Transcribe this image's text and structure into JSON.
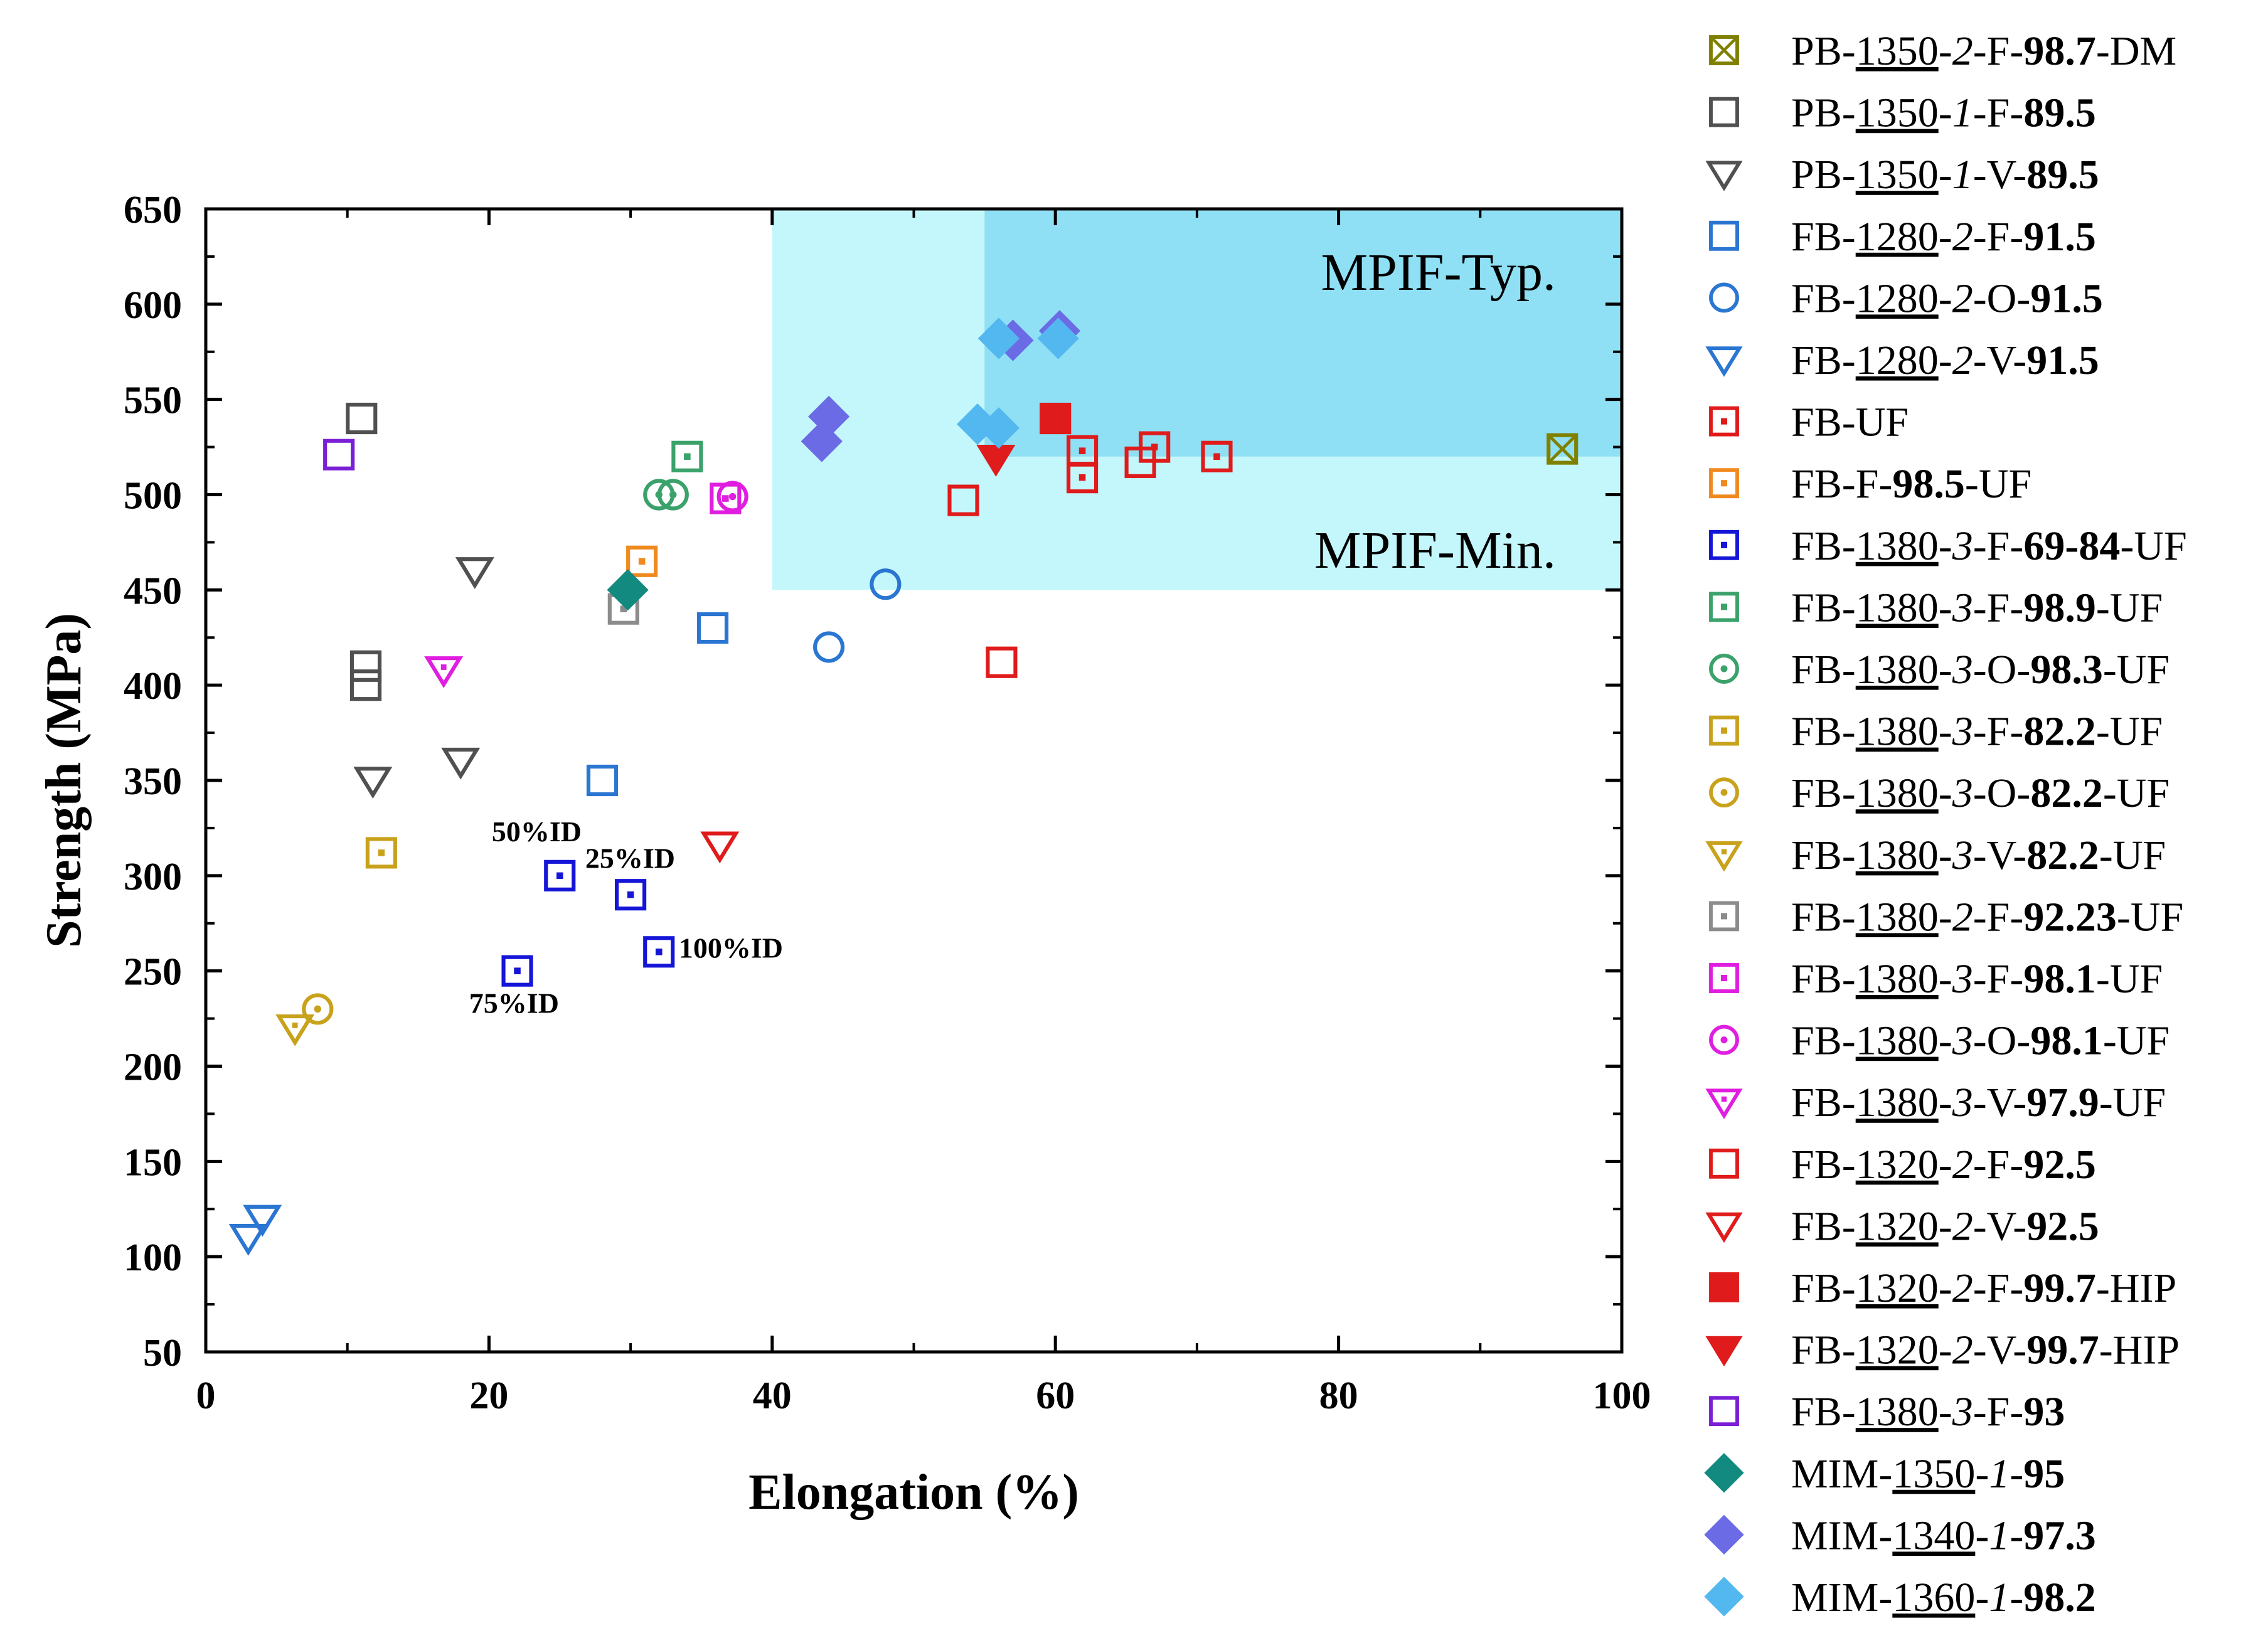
{
  "chart_data": {
    "type": "scatter",
    "xlabel": "Elongation (%)",
    "ylabel": "Strength (MPa)",
    "xlim": [
      0,
      100
    ],
    "ylim": [
      50,
      650
    ],
    "xticks": [
      0,
      20,
      40,
      60,
      80,
      100
    ],
    "yticks": [
      50,
      100,
      150,
      200,
      250,
      300,
      350,
      400,
      450,
      500,
      550,
      600,
      650
    ],
    "regions": [
      {
        "name": "MPIF-Min.",
        "x": [
          40,
          100
        ],
        "y": [
          450,
          650
        ],
        "color": "#c4f7fb"
      },
      {
        "name": "MPIF-Typ.",
        "x": [
          55,
          100
        ],
        "y": [
          520,
          650
        ],
        "color": "#8fe0f5"
      }
    ],
    "annotations": [
      {
        "text": "50%ID",
        "x": 20.2,
        "y": 318
      },
      {
        "text": "25%ID",
        "x": 26.8,
        "y": 304
      },
      {
        "text": "100%ID",
        "x": 33.4,
        "y": 257
      },
      {
        "text": "75%ID",
        "x": 18.6,
        "y": 228
      }
    ],
    "series": [
      {
        "name": "PB-1350-2-F-98.7-DM",
        "label": [
          [
            "PB-",
            ""
          ],
          [
            "1350",
            "u"
          ],
          [
            "-",
            ""
          ],
          [
            "2",
            "i"
          ],
          [
            "-F-",
            ""
          ],
          [
            "98.7",
            "b"
          ],
          [
            "-DM",
            ""
          ]
        ],
        "marker": "square-x",
        "color": "#808000",
        "filled": false,
        "points": [
          [
            95.8,
            524
          ]
        ]
      },
      {
        "name": "PB-1350-1-F-89.5",
        "label": [
          [
            "PB-",
            ""
          ],
          [
            "1350",
            "u"
          ],
          [
            "-",
            ""
          ],
          [
            "1",
            "i"
          ],
          [
            "-F-",
            ""
          ],
          [
            "89.5",
            "b"
          ]
        ],
        "marker": "square",
        "color": "#505050",
        "filled": false,
        "points": [
          [
            11,
            540
          ],
          [
            11.3,
            410
          ],
          [
            11.3,
            400
          ]
        ]
      },
      {
        "name": "PB-1350-1-V-89.5",
        "label": [
          [
            "PB-",
            ""
          ],
          [
            "1350",
            "u"
          ],
          [
            "-",
            ""
          ],
          [
            "1",
            "i"
          ],
          [
            "-V-",
            ""
          ],
          [
            "89.5",
            "b"
          ]
        ],
        "marker": "tri-down",
        "color": "#505050",
        "filled": false,
        "points": [
          [
            19,
            460
          ],
          [
            11.8,
            350
          ],
          [
            18,
            360
          ]
        ]
      },
      {
        "name": "FB-1280-2-F-91.5",
        "label": [
          [
            "FB-",
            ""
          ],
          [
            "1280",
            "u"
          ],
          [
            "-",
            ""
          ],
          [
            "2",
            "i"
          ],
          [
            "-F-",
            ""
          ],
          [
            "91.5",
            "b"
          ]
        ],
        "marker": "square",
        "color": "#2a76d2",
        "filled": false,
        "points": [
          [
            35.8,
            430
          ],
          [
            28,
            350
          ]
        ]
      },
      {
        "name": "FB-1280-2-O-91.5",
        "label": [
          [
            "FB-",
            ""
          ],
          [
            "1280",
            "u"
          ],
          [
            "-",
            ""
          ],
          [
            "2",
            "i"
          ],
          [
            "-O-",
            ""
          ],
          [
            "91.5",
            "b"
          ]
        ],
        "marker": "circle",
        "color": "#2a76d2",
        "filled": false,
        "points": [
          [
            48,
            453
          ],
          [
            44,
            420
          ]
        ]
      },
      {
        "name": "FB-1280-2-V-91.5",
        "label": [
          [
            "FB-",
            ""
          ],
          [
            "1280",
            "u"
          ],
          [
            "-",
            ""
          ],
          [
            "2",
            "i"
          ],
          [
            "-V-",
            ""
          ],
          [
            "91.5",
            "b"
          ]
        ],
        "marker": "tri-down",
        "color": "#2a76d2",
        "filled": false,
        "points": [
          [
            4,
            120
          ],
          [
            3,
            110
          ]
        ]
      },
      {
        "name": "FB-UF",
        "label": [
          [
            "FB-UF",
            ""
          ]
        ],
        "marker": "square-dot",
        "color": "#e01b1b",
        "filled": false,
        "points": [
          [
            61.9,
            523
          ],
          [
            61.9,
            509
          ],
          [
            67,
            525
          ],
          [
            71.4,
            520
          ]
        ]
      },
      {
        "name": "FB-F-98.5-UF",
        "label": [
          [
            "FB-F-",
            ""
          ],
          [
            "98.5",
            "b"
          ],
          [
            "-UF",
            ""
          ]
        ],
        "marker": "square-dot",
        "color": "#f08a1e",
        "filled": false,
        "points": [
          [
            30.8,
            465
          ]
        ]
      },
      {
        "name": "FB-1380-3-F-69-84-UF",
        "label": [
          [
            "FB-",
            ""
          ],
          [
            "1380",
            "u"
          ],
          [
            "-",
            ""
          ],
          [
            "3",
            "i"
          ],
          [
            "-F-",
            ""
          ],
          [
            "69-84",
            "b"
          ],
          [
            "-UF",
            ""
          ]
        ],
        "marker": "square-dot",
        "color": "#1515d8",
        "filled": false,
        "points": [
          [
            25,
            300
          ],
          [
            30,
            290
          ],
          [
            32,
            260
          ],
          [
            22,
            250
          ]
        ]
      },
      {
        "name": "FB-1380-3-F-98.9-UF",
        "label": [
          [
            "FB-",
            ""
          ],
          [
            "1380",
            "u"
          ],
          [
            "-",
            ""
          ],
          [
            "3",
            "i"
          ],
          [
            "-F-",
            ""
          ],
          [
            "98.9",
            "b"
          ],
          [
            "-UF",
            ""
          ]
        ],
        "marker": "square-dot",
        "color": "#3aa26a",
        "filled": false,
        "points": [
          [
            34,
            520
          ]
        ]
      },
      {
        "name": "FB-1380-3-O-98.3-UF",
        "label": [
          [
            "FB-",
            ""
          ],
          [
            "1380",
            "u"
          ],
          [
            "-",
            ""
          ],
          [
            "3",
            "i"
          ],
          [
            "-O-",
            ""
          ],
          [
            "98.3",
            "b"
          ],
          [
            "-UF",
            ""
          ]
        ],
        "marker": "circle-dot",
        "color": "#3aa26a",
        "filled": false,
        "points": [
          [
            32,
            500
          ],
          [
            33,
            500
          ]
        ]
      },
      {
        "name": "FB-1380-3-F-82.2-UF",
        "label": [
          [
            "FB-",
            ""
          ],
          [
            "1380",
            "u"
          ],
          [
            "-",
            ""
          ],
          [
            "3",
            "i"
          ],
          [
            "-F-",
            ""
          ],
          [
            "82.2",
            "b"
          ],
          [
            "-UF",
            ""
          ]
        ],
        "marker": "square-dot",
        "color": "#c9a21c",
        "filled": false,
        "points": [
          [
            12.4,
            312
          ]
        ]
      },
      {
        "name": "FB-1380-3-O-82.2-UF",
        "label": [
          [
            "FB-",
            ""
          ],
          [
            "1380",
            "u"
          ],
          [
            "-",
            ""
          ],
          [
            "3",
            "i"
          ],
          [
            "-O-",
            ""
          ],
          [
            "82.2",
            "b"
          ],
          [
            "-UF",
            ""
          ]
        ],
        "marker": "circle-dot",
        "color": "#c9a21c",
        "filled": false,
        "points": [
          [
            7.9,
            230
          ]
        ]
      },
      {
        "name": "FB-1380-3-V-82.2-UF",
        "label": [
          [
            "FB-",
            ""
          ],
          [
            "1380",
            "u"
          ],
          [
            "-",
            ""
          ],
          [
            "3",
            "i"
          ],
          [
            "-V-",
            ""
          ],
          [
            "82.2",
            "b"
          ],
          [
            "-UF",
            ""
          ]
        ],
        "marker": "tri-down-dot",
        "color": "#c9a21c",
        "filled": false,
        "points": [
          [
            6.3,
            220
          ]
        ]
      },
      {
        "name": "FB-1380-2-F-92.23-UF",
        "label": [
          [
            "FB-",
            ""
          ],
          [
            "1380",
            "u"
          ],
          [
            "-",
            ""
          ],
          [
            "2",
            "i"
          ],
          [
            "-F-",
            ""
          ],
          [
            "92.23",
            "b"
          ],
          [
            "-UF",
            ""
          ]
        ],
        "marker": "square-dot",
        "color": "#8c8c8c",
        "filled": false,
        "points": [
          [
            29.5,
            440
          ]
        ]
      },
      {
        "name": "FB-1380-3-F-98.1-UF",
        "label": [
          [
            "FB-",
            ""
          ],
          [
            "1380",
            "u"
          ],
          [
            "-",
            ""
          ],
          [
            "3",
            "i"
          ],
          [
            "-F-",
            ""
          ],
          [
            "98.1",
            "b"
          ],
          [
            "-UF",
            ""
          ]
        ],
        "marker": "square-dot",
        "color": "#e01ee0",
        "filled": false,
        "points": [
          [
            36.7,
            498
          ]
        ]
      },
      {
        "name": "FB-1380-3-O-98.1-UF",
        "label": [
          [
            "FB-",
            ""
          ],
          [
            "1380",
            "u"
          ],
          [
            "-",
            ""
          ],
          [
            "3",
            "i"
          ],
          [
            "-O-",
            ""
          ],
          [
            "98.1",
            "b"
          ],
          [
            "-UF",
            ""
          ]
        ],
        "marker": "circle-dot",
        "color": "#e01ee0",
        "filled": false,
        "points": [
          [
            37.2,
            499
          ]
        ]
      },
      {
        "name": "FB-1380-3-V-97.9-UF",
        "label": [
          [
            "FB-",
            ""
          ],
          [
            "1380",
            "u"
          ],
          [
            "-",
            ""
          ],
          [
            "3",
            "i"
          ],
          [
            "-V-",
            ""
          ],
          [
            "97.9",
            "b"
          ],
          [
            "-UF",
            ""
          ]
        ],
        "marker": "tri-down-dot",
        "color": "#e01ee0",
        "filled": false,
        "points": [
          [
            16.8,
            408
          ]
        ]
      },
      {
        "name": "FB-1320-2-F-92.5",
        "label": [
          [
            "FB-",
            ""
          ],
          [
            "1320",
            "u"
          ],
          [
            "-",
            ""
          ],
          [
            "2",
            "i"
          ],
          [
            "-F-",
            ""
          ],
          [
            "92.5",
            "b"
          ]
        ],
        "marker": "square",
        "color": "#e01b1b",
        "filled": false,
        "points": [
          [
            53.5,
            497
          ],
          [
            56.2,
            412
          ],
          [
            66,
            517
          ]
        ]
      },
      {
        "name": "FB-1320-2-V-92.5",
        "label": [
          [
            "FB-",
            ""
          ],
          [
            "1320",
            "u"
          ],
          [
            "-",
            ""
          ],
          [
            "2",
            "i"
          ],
          [
            "-V-",
            ""
          ],
          [
            "92.5",
            "b"
          ]
        ],
        "marker": "tri-down",
        "color": "#e01b1b",
        "filled": false,
        "points": [
          [
            36.3,
            316
          ]
        ]
      },
      {
        "name": "FB-1320-2-F-99.7-HIP",
        "label": [
          [
            "FB-",
            ""
          ],
          [
            "1320",
            "u"
          ],
          [
            "-",
            ""
          ],
          [
            "2",
            "i"
          ],
          [
            "-F-",
            ""
          ],
          [
            "99.7",
            "b"
          ],
          [
            "-HIP",
            ""
          ]
        ],
        "marker": "square",
        "color": "#e01b1b",
        "filled": true,
        "points": [
          [
            60,
            540
          ]
        ]
      },
      {
        "name": "FB-1320-2-V-99.7-HIP",
        "label": [
          [
            "FB-",
            ""
          ],
          [
            "1320",
            "u"
          ],
          [
            "-",
            ""
          ],
          [
            "2",
            "i"
          ],
          [
            "-V-",
            ""
          ],
          [
            "99.7",
            "b"
          ],
          [
            "-HIP",
            ""
          ]
        ],
        "marker": "tri-down",
        "color": "#e01b1b",
        "filled": true,
        "points": [
          [
            55.8,
            519
          ]
        ]
      },
      {
        "name": "FB-1380-3-F-93",
        "label": [
          [
            "FB-",
            ""
          ],
          [
            "1380",
            "u"
          ],
          [
            "-",
            ""
          ],
          [
            "3",
            "i"
          ],
          [
            "-F-",
            ""
          ],
          [
            "93",
            "b"
          ]
        ],
        "marker": "square",
        "color": "#7b1fd6",
        "filled": false,
        "points": [
          [
            9.4,
            521
          ]
        ]
      },
      {
        "name": "MIM-1350-1-95",
        "label": [
          [
            "MIM-",
            ""
          ],
          [
            "1350",
            "u"
          ],
          [
            "-",
            ""
          ],
          [
            "1",
            "i"
          ],
          [
            "-",
            ""
          ],
          [
            "95",
            "b"
          ]
        ],
        "marker": "diamond",
        "color": "#138a80",
        "filled": true,
        "points": [
          [
            29.8,
            450
          ]
        ]
      },
      {
        "name": "MIM-1340-1-97.3",
        "label": [
          [
            "MIM-",
            ""
          ],
          [
            "1340",
            "u"
          ],
          [
            "-",
            ""
          ],
          [
            "1",
            "i"
          ],
          [
            "-",
            ""
          ],
          [
            "97.3",
            "b"
          ]
        ],
        "marker": "diamond",
        "color": "#6b6be6",
        "filled": true,
        "points": [
          [
            43.5,
            528
          ],
          [
            44,
            541
          ],
          [
            57,
            581
          ],
          [
            60.3,
            586
          ]
        ]
      },
      {
        "name": "MIM-1360-1-98.2",
        "label": [
          [
            "MIM-",
            ""
          ],
          [
            "1360",
            "u"
          ],
          [
            "-",
            ""
          ],
          [
            "1",
            "i"
          ],
          [
            "-",
            ""
          ],
          [
            "98.2",
            "b"
          ]
        ],
        "marker": "diamond",
        "color": "#53b8f0",
        "filled": true,
        "points": [
          [
            54.5,
            537
          ],
          [
            56,
            535
          ],
          [
            56,
            582
          ],
          [
            60.2,
            582
          ]
        ]
      }
    ]
  }
}
